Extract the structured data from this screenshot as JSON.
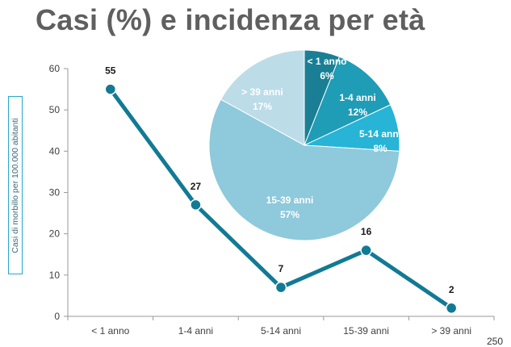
{
  "title": "Casi (%) e incidenza per età",
  "page_number_partial": "250",
  "chart_data": [
    {
      "type": "line",
      "categories": [
        "< 1 anno",
        "1-4 anni",
        "5-14 anni",
        "15-39 anni",
        "> 39 anni"
      ],
      "series": [
        {
          "values": [
            55,
            27,
            7,
            16,
            2
          ],
          "color": "#117a94"
        }
      ],
      "data_labels": [
        "55",
        "27",
        "7",
        "16",
        "2"
      ],
      "ylabel": "Casi di morbillo per 100.000 abitanti",
      "ylim": [
        0,
        60
      ],
      "yticks": [
        0,
        10,
        20,
        30,
        40,
        50,
        60
      ],
      "grid": false
    },
    {
      "type": "pie",
      "slices": [
        {
          "label": "< 1 anno",
          "value": 6,
          "value_label": "6%",
          "color": "#1a7f94"
        },
        {
          "label": "1-4 anni",
          "value": 12,
          "value_label": "12%",
          "color": "#1f9cb6"
        },
        {
          "label": "5-14 anni",
          "value": 8,
          "value_label": "8%",
          "color": "#27b4d6"
        },
        {
          "label": "15-39 anni",
          "value": 57,
          "value_label": "57%",
          "color": "#8ec9dc"
        },
        {
          "label": "> 39 anni",
          "value": 17,
          "value_label": "17%",
          "color": "#bcdce8"
        }
      ]
    }
  ]
}
